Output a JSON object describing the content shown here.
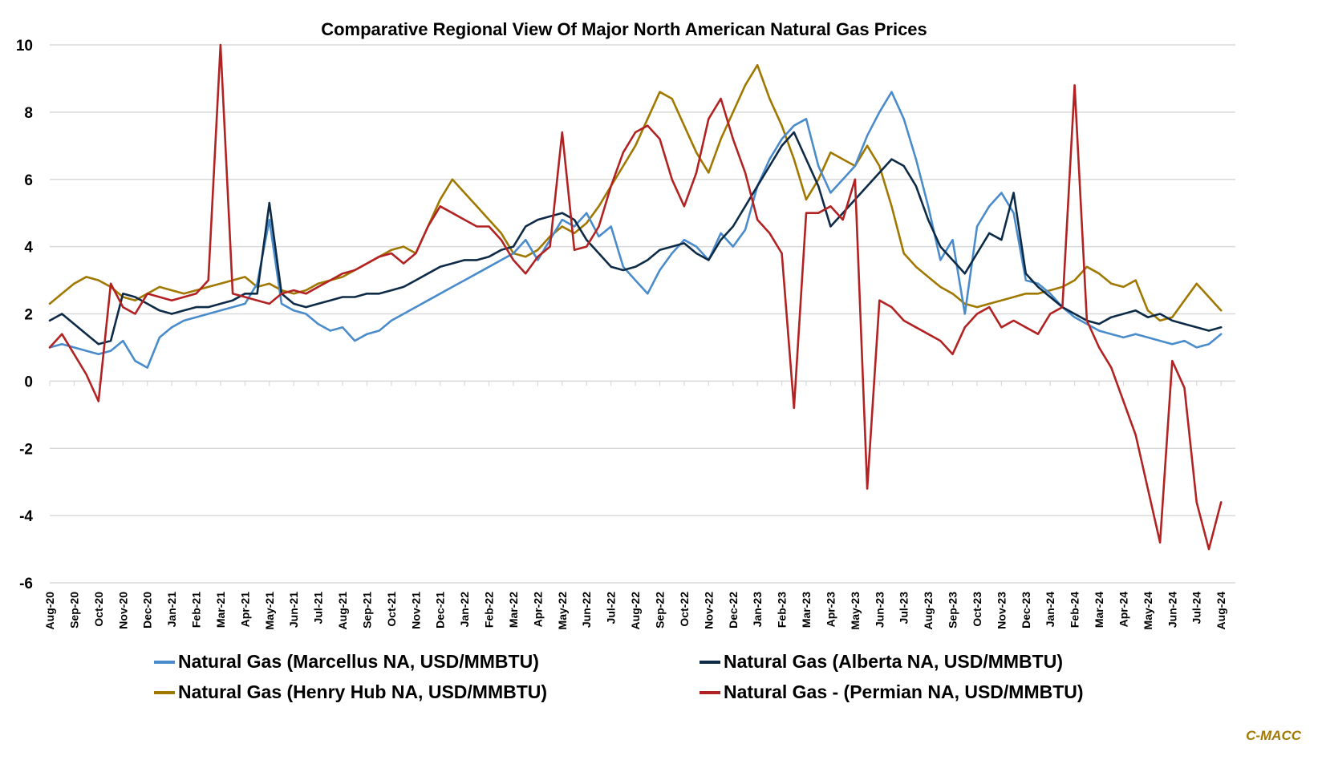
{
  "chart_data": {
    "type": "line",
    "title": "Comparative Regional View Of Major North American Natural Gas Prices",
    "xlabel": "",
    "ylabel": "",
    "ylim": [
      -6,
      10
    ],
    "yticks": [
      10,
      8,
      6,
      4,
      2,
      0,
      -2,
      -4,
      -6
    ],
    "ytick_labels": [
      "10",
      "8",
      "6",
      "4",
      "2",
      "0",
      "-2",
      "-4",
      "-6"
    ],
    "grid": true,
    "legend_position": "bottom",
    "x_step": "half-month",
    "x_start": "Aug-20",
    "categories": [
      "Aug-20",
      "Sep-20",
      "Oct-20",
      "Nov-20",
      "Dec-20",
      "Jan-21",
      "Feb-21",
      "Mar-21",
      "Apr-21",
      "May-21",
      "Jun-21",
      "Jul-21",
      "Aug-21",
      "Sep-21",
      "Oct-21",
      "Nov-21",
      "Dec-21",
      "Jan-22",
      "Feb-22",
      "Mar-22",
      "Apr-22",
      "May-22",
      "Jun-22",
      "Jul-22",
      "Aug-22",
      "Sep-22",
      "Oct-22",
      "Nov-22",
      "Dec-22",
      "Jan-23",
      "Feb-23",
      "Mar-23",
      "Apr-23",
      "May-23",
      "Jun-23",
      "Jul-23",
      "Aug-23",
      "Sep-23",
      "Oct-23",
      "Nov-23",
      "Dec-23",
      "Jan-24",
      "Feb-24",
      "Mar-24",
      "Apr-24",
      "May-24",
      "Jun-24",
      "Jul-24",
      "Aug-24"
    ],
    "series": [
      {
        "name": "Natural Gas (Marcellus NA, USD/MMBTU)",
        "color": "#4a8ccb",
        "values": [
          1.0,
          1.1,
          1.0,
          0.9,
          0.8,
          0.9,
          1.2,
          0.6,
          0.4,
          1.3,
          1.6,
          1.8,
          1.9,
          2.0,
          2.1,
          2.2,
          2.3,
          2.9,
          4.8,
          2.3,
          2.1,
          2.0,
          1.7,
          1.5,
          1.6,
          1.2,
          1.4,
          1.5,
          1.8,
          2.0,
          2.2,
          2.4,
          2.6,
          2.8,
          3.0,
          3.2,
          3.4,
          3.6,
          3.8,
          4.2,
          3.6,
          4.2,
          4.8,
          4.6,
          5.0,
          4.3,
          4.6,
          3.4,
          3.0,
          2.6,
          3.3,
          3.8,
          4.2,
          4.0,
          3.6,
          4.4,
          4.0,
          4.5,
          5.8,
          6.6,
          7.2,
          7.6,
          7.8,
          6.4,
          5.6,
          6.0,
          6.4,
          7.3,
          8.0,
          8.6,
          7.8,
          6.6,
          5.2,
          3.6,
          4.2,
          2.0,
          4.6,
          5.2,
          5.6,
          5.0,
          3.0,
          2.9,
          2.6,
          2.2,
          1.9,
          1.7,
          1.5,
          1.4,
          1.3,
          1.4,
          1.3,
          1.2,
          1.1,
          1.2,
          1.0,
          1.1,
          1.4
        ]
      },
      {
        "name": "Natural Gas (Alberta NA, USD/MMBTU)",
        "color": "#0d2a47",
        "values": [
          1.8,
          2.0,
          1.7,
          1.4,
          1.1,
          1.2,
          2.6,
          2.5,
          2.3,
          2.1,
          2.0,
          2.1,
          2.2,
          2.2,
          2.3,
          2.4,
          2.6,
          2.6,
          5.3,
          2.6,
          2.3,
          2.2,
          2.3,
          2.4,
          2.5,
          2.5,
          2.6,
          2.6,
          2.7,
          2.8,
          3.0,
          3.2,
          3.4,
          3.5,
          3.6,
          3.6,
          3.7,
          3.9,
          4.0,
          4.6,
          4.8,
          4.9,
          5.0,
          4.8,
          4.2,
          3.8,
          3.4,
          3.3,
          3.4,
          3.6,
          3.9,
          4.0,
          4.1,
          3.8,
          3.6,
          4.2,
          4.6,
          5.2,
          5.8,
          6.4,
          7.0,
          7.4,
          6.6,
          5.8,
          4.6,
          5.0,
          5.4,
          5.8,
          6.2,
          6.6,
          6.4,
          5.8,
          4.8,
          4.0,
          3.6,
          3.2,
          3.8,
          4.4,
          4.2,
          5.6,
          3.2,
          2.8,
          2.5,
          2.2,
          2.0,
          1.8,
          1.7,
          1.9,
          2.0,
          2.1,
          1.9,
          2.0,
          1.8,
          1.7,
          1.6,
          1.5,
          1.6
        ]
      },
      {
        "name": "Natural Gas (Henry Hub NA, USD/MMBTU)",
        "color": "#a07800",
        "values": [
          2.3,
          2.6,
          2.9,
          3.1,
          3.0,
          2.8,
          2.5,
          2.4,
          2.6,
          2.8,
          2.7,
          2.6,
          2.7,
          2.8,
          2.9,
          3.0,
          3.1,
          2.8,
          2.9,
          2.7,
          2.6,
          2.7,
          2.9,
          3.0,
          3.1,
          3.3,
          3.5,
          3.7,
          3.9,
          4.0,
          3.8,
          4.6,
          5.4,
          6.0,
          5.6,
          5.2,
          4.8,
          4.4,
          3.8,
          3.7,
          3.9,
          4.3,
          4.6,
          4.4,
          4.7,
          5.2,
          5.8,
          6.4,
          7.0,
          7.8,
          8.6,
          8.4,
          7.6,
          6.8,
          6.2,
          7.2,
          8.0,
          8.8,
          9.4,
          8.4,
          7.6,
          6.6,
          5.4,
          6.0,
          6.8,
          6.6,
          6.4,
          7.0,
          6.4,
          5.2,
          3.8,
          3.4,
          3.1,
          2.8,
          2.6,
          2.3,
          2.2,
          2.3,
          2.4,
          2.5,
          2.6,
          2.6,
          2.7,
          2.8,
          3.0,
          3.4,
          3.2,
          2.9,
          2.8,
          3.0,
          2.1,
          1.8,
          1.9,
          2.4,
          2.9,
          2.5,
          2.1
        ]
      },
      {
        "name": "Natural Gas - (Permian NA, USD/MMBTU)",
        "color": "#b22222",
        "values": [
          1.0,
          1.4,
          0.8,
          0.2,
          -0.6,
          2.9,
          2.2,
          2.0,
          2.6,
          2.5,
          2.4,
          2.5,
          2.6,
          3.0,
          10.0,
          2.6,
          2.5,
          2.4,
          2.3,
          2.6,
          2.7,
          2.6,
          2.8,
          3.0,
          3.2,
          3.3,
          3.5,
          3.7,
          3.8,
          3.5,
          3.8,
          4.6,
          5.2,
          5.0,
          4.8,
          4.6,
          4.6,
          4.2,
          3.6,
          3.2,
          3.7,
          4.0,
          7.4,
          3.9,
          4.0,
          4.6,
          5.8,
          6.8,
          7.4,
          7.6,
          7.2,
          6.0,
          5.2,
          6.2,
          7.8,
          8.4,
          7.2,
          6.2,
          4.8,
          4.4,
          3.8,
          -0.8,
          5.0,
          5.0,
          5.2,
          4.8,
          6.0,
          -3.2,
          2.4,
          2.2,
          1.8,
          1.6,
          1.4,
          1.2,
          0.8,
          1.6,
          2.0,
          2.2,
          1.6,
          1.8,
          1.6,
          1.4,
          2.0,
          2.2,
          8.8,
          1.8,
          1.0,
          0.4,
          -0.6,
          -1.6,
          -3.2,
          -4.8,
          0.6,
          -0.2,
          -3.6,
          -5.0,
          -3.6
        ]
      }
    ]
  },
  "legend": {
    "items": [
      {
        "label": "Natural Gas (Marcellus NA, USD/MMBTU)",
        "color": "#4a8ccb"
      },
      {
        "label": "Natural Gas (Alberta NA, USD/MMBTU)",
        "color": "#0d2a47"
      },
      {
        "label": "Natural Gas (Henry Hub NA, USD/MMBTU)",
        "color": "#a07800"
      },
      {
        "label": "Natural Gas - (Permian NA, USD/MMBTU)",
        "color": "#b22222"
      }
    ]
  },
  "credit": {
    "text": "C-MACC",
    "color": "#a07800"
  }
}
